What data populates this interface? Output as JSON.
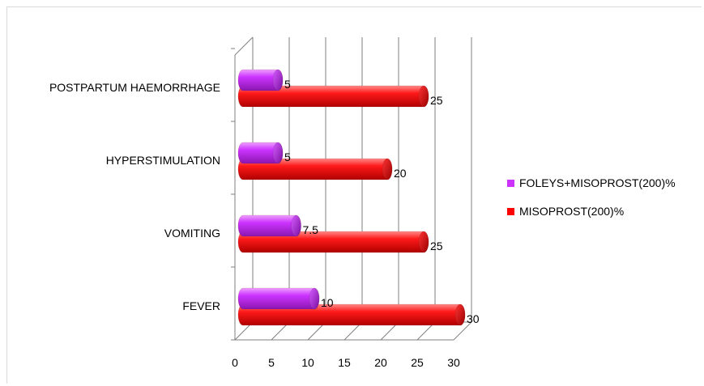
{
  "chart_data": {
    "type": "bar",
    "orientation": "horizontal",
    "style": "3d-cylinder",
    "categories": [
      "FEVER",
      "VOMITING",
      "HYPERSTIMULATION",
      "POSTPARTUM HAEMORRHAGE"
    ],
    "series": [
      {
        "name": "FOLEYS+MISOPROST(200)%",
        "color": "#cc33ff",
        "values": [
          10,
          7.5,
          5,
          5
        ],
        "value_labels": [
          "10",
          "7.5",
          "5",
          "5"
        ]
      },
      {
        "name": "MISOPROST(200)%",
        "color": "#ff0000",
        "values": [
          30,
          25,
          20,
          25
        ],
        "value_labels": [
          "30",
          "25",
          "20",
          "25"
        ]
      }
    ],
    "xticks": [
      "0",
      "5",
      "10",
      "15",
      "20",
      "25",
      "30"
    ],
    "xlim": [
      0,
      30
    ],
    "grid": true,
    "legend": "right"
  }
}
